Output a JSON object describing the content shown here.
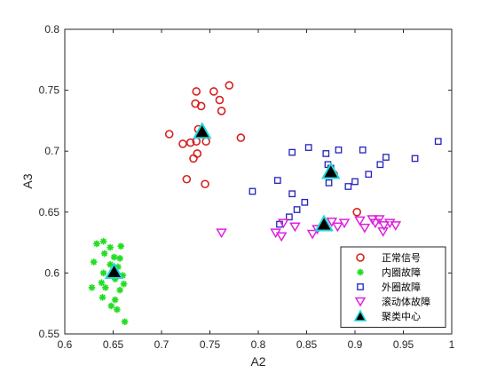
{
  "chart_data": {
    "type": "scatter",
    "xlabel": "A2",
    "ylabel": "A3",
    "xlim": [
      0.6,
      1.0
    ],
    "ylim": [
      0.55,
      0.8
    ],
    "xticks": [
      0.6,
      0.65,
      0.7,
      0.75,
      0.8,
      0.85,
      0.9,
      0.95,
      1.0
    ],
    "yticks": [
      0.55,
      0.6,
      0.65,
      0.7,
      0.75,
      0.8
    ],
    "xtick_labels": [
      "0.6",
      "0.65",
      "0.7",
      "0.75",
      "0.8",
      "0.85",
      "0.9",
      "0.95",
      "1"
    ],
    "ytick_labels": [
      "0.55",
      "0.6",
      "0.65",
      "0.7",
      "0.75",
      "0.8"
    ],
    "grid": false,
    "legend_position": "bottom-right",
    "series": [
      {
        "name": "正常信号",
        "marker": "circle",
        "color": "#d62020",
        "points": [
          [
            0.736,
            0.749
          ],
          [
            0.754,
            0.749
          ],
          [
            0.77,
            0.754
          ],
          [
            0.76,
            0.742
          ],
          [
            0.735,
            0.739
          ],
          [
            0.741,
            0.737
          ],
          [
            0.762,
            0.733
          ],
          [
            0.738,
            0.718
          ],
          [
            0.708,
            0.714
          ],
          [
            0.722,
            0.706
          ],
          [
            0.73,
            0.707
          ],
          [
            0.736,
            0.708
          ],
          [
            0.746,
            0.708
          ],
          [
            0.782,
            0.711
          ],
          [
            0.737,
            0.698
          ],
          [
            0.733,
            0.694
          ],
          [
            0.726,
            0.677
          ],
          [
            0.745,
            0.673
          ],
          [
            0.878,
            0.681
          ],
          [
            0.902,
            0.65
          ]
        ]
      },
      {
        "name": "内圈故障",
        "marker": "asterisk",
        "color": "#22dd22",
        "points": [
          [
            0.633,
            0.624
          ],
          [
            0.64,
            0.626
          ],
          [
            0.647,
            0.621
          ],
          [
            0.658,
            0.622
          ],
          [
            0.641,
            0.616
          ],
          [
            0.651,
            0.613
          ],
          [
            0.657,
            0.612
          ],
          [
            0.63,
            0.609
          ],
          [
            0.647,
            0.607
          ],
          [
            0.655,
            0.605
          ],
          [
            0.64,
            0.6
          ],
          [
            0.66,
            0.598
          ],
          [
            0.638,
            0.592
          ],
          [
            0.652,
            0.595
          ],
          [
            0.661,
            0.591
          ],
          [
            0.628,
            0.588
          ],
          [
            0.642,
            0.588
          ],
          [
            0.657,
            0.586
          ],
          [
            0.639,
            0.58
          ],
          [
            0.652,
            0.578
          ],
          [
            0.648,
            0.573
          ],
          [
            0.654,
            0.57
          ],
          [
            0.662,
            0.56
          ]
        ]
      },
      {
        "name": "外圈故障",
        "marker": "square",
        "color": "#2222bb",
        "points": [
          [
            0.835,
            0.699
          ],
          [
            0.852,
            0.703
          ],
          [
            0.87,
            0.698
          ],
          [
            0.883,
            0.701
          ],
          [
            0.908,
            0.701
          ],
          [
            0.932,
            0.695
          ],
          [
            0.962,
            0.694
          ],
          [
            0.986,
            0.708
          ],
          [
            0.872,
            0.689
          ],
          [
            0.926,
            0.689
          ],
          [
            0.914,
            0.681
          ],
          [
            0.82,
            0.676
          ],
          [
            0.9,
            0.675
          ],
          [
            0.893,
            0.671
          ],
          [
            0.873,
            0.674
          ],
          [
            0.875,
            0.686
          ],
          [
            0.794,
            0.667
          ],
          [
            0.835,
            0.665
          ],
          [
            0.848,
            0.658
          ],
          [
            0.84,
            0.652
          ],
          [
            0.832,
            0.646
          ],
          [
            0.822,
            0.64
          ]
        ]
      },
      {
        "name": "滚动体故障",
        "marker": "triangle-down",
        "color": "#dd22dd",
        "points": [
          [
            0.762,
            0.633
          ],
          [
            0.818,
            0.633
          ],
          [
            0.824,
            0.63
          ],
          [
            0.826,
            0.641
          ],
          [
            0.838,
            0.638
          ],
          [
            0.856,
            0.632
          ],
          [
            0.861,
            0.636
          ],
          [
            0.876,
            0.642
          ],
          [
            0.882,
            0.638
          ],
          [
            0.889,
            0.641
          ],
          [
            0.905,
            0.643
          ],
          [
            0.91,
            0.637
          ],
          [
            0.918,
            0.644
          ],
          [
            0.921,
            0.641
          ],
          [
            0.925,
            0.644
          ],
          [
            0.93,
            0.639
          ],
          [
            0.929,
            0.634
          ],
          [
            0.936,
            0.641
          ],
          [
            0.942,
            0.639
          ]
        ]
      },
      {
        "name": "聚类中心",
        "marker": "triangle-up",
        "color": "#000000",
        "edge_color": "#22d8d8",
        "points": [
          [
            0.742,
            0.716
          ],
          [
            0.651,
            0.601
          ],
          [
            0.875,
            0.683
          ],
          [
            0.868,
            0.64
          ]
        ]
      }
    ]
  }
}
